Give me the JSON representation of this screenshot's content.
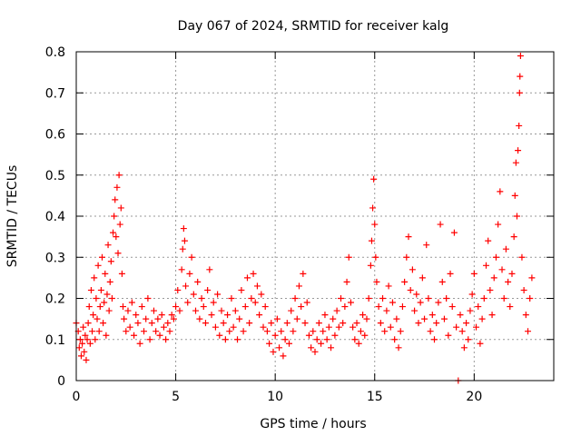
{
  "chart_data": {
    "type": "scatter",
    "title": "Day 067 of 2024, SRMTID for receiver kalg",
    "xlabel": "GPS time / hours",
    "ylabel": "SRMTID / TECUs",
    "xlim": [
      0,
      24
    ],
    "ylim": [
      0,
      0.8
    ],
    "xticks": [
      0,
      5,
      10,
      15,
      20
    ],
    "xtick_labels": [
      "0",
      "5",
      "10",
      "15",
      "20"
    ],
    "yticks": [
      0,
      0.1,
      0.2,
      0.3,
      0.4,
      0.5,
      0.6,
      0.7,
      0.8
    ],
    "ytick_labels": [
      "0",
      "0.1",
      "0.2",
      "0.3",
      "0.4",
      "0.5",
      "0.6",
      "0.7",
      "0.8"
    ],
    "grid": true,
    "marker": "+",
    "color": "#ff0000",
    "series": [
      {
        "name": "SRMTID",
        "points": [
          [
            0.0,
            0.14
          ],
          [
            0.1,
            0.12
          ],
          [
            0.15,
            0.08
          ],
          [
            0.2,
            0.1
          ],
          [
            0.25,
            0.06
          ],
          [
            0.3,
            0.09
          ],
          [
            0.35,
            0.13
          ],
          [
            0.4,
            0.07
          ],
          [
            0.45,
            0.11
          ],
          [
            0.5,
            0.05
          ],
          [
            0.55,
            0.1
          ],
          [
            0.6,
            0.14
          ],
          [
            0.65,
            0.18
          ],
          [
            0.7,
            0.09
          ],
          [
            0.75,
            0.22
          ],
          [
            0.8,
            0.12
          ],
          [
            0.85,
            0.16
          ],
          [
            0.9,
            0.25
          ],
          [
            0.95,
            0.1
          ],
          [
            1.0,
            0.2
          ],
          [
            1.05,
            0.15
          ],
          [
            1.1,
            0.28
          ],
          [
            1.15,
            0.12
          ],
          [
            1.2,
            0.18
          ],
          [
            1.25,
            0.22
          ],
          [
            1.3,
            0.3
          ],
          [
            1.35,
            0.14
          ],
          [
            1.4,
            0.19
          ],
          [
            1.45,
            0.26
          ],
          [
            1.5,
            0.11
          ],
          [
            1.55,
            0.21
          ],
          [
            1.6,
            0.33
          ],
          [
            1.65,
            0.17
          ],
          [
            1.7,
            0.24
          ],
          [
            1.75,
            0.29
          ],
          [
            1.8,
            0.2
          ],
          [
            1.85,
            0.36
          ],
          [
            1.9,
            0.4
          ],
          [
            1.95,
            0.44
          ],
          [
            2.0,
            0.35
          ],
          [
            2.05,
            0.47
          ],
          [
            2.1,
            0.31
          ],
          [
            2.15,
            0.5
          ],
          [
            2.2,
            0.38
          ],
          [
            2.25,
            0.42
          ],
          [
            2.3,
            0.26
          ],
          [
            2.35,
            0.18
          ],
          [
            2.4,
            0.15
          ],
          [
            2.5,
            0.12
          ],
          [
            2.6,
            0.17
          ],
          [
            2.7,
            0.13
          ],
          [
            2.8,
            0.19
          ],
          [
            2.9,
            0.11
          ],
          [
            3.0,
            0.16
          ],
          [
            3.1,
            0.14
          ],
          [
            3.2,
            0.09
          ],
          [
            3.3,
            0.18
          ],
          [
            3.4,
            0.12
          ],
          [
            3.5,
            0.15
          ],
          [
            3.6,
            0.2
          ],
          [
            3.7,
            0.1
          ],
          [
            3.8,
            0.14
          ],
          [
            3.9,
            0.17
          ],
          [
            4.0,
            0.12
          ],
          [
            4.1,
            0.15
          ],
          [
            4.2,
            0.11
          ],
          [
            4.3,
            0.16
          ],
          [
            4.4,
            0.13
          ],
          [
            4.5,
            0.1
          ],
          [
            4.6,
            0.14
          ],
          [
            4.7,
            0.12
          ],
          [
            4.8,
            0.16
          ],
          [
            4.9,
            0.15
          ],
          [
            5.0,
            0.18
          ],
          [
            5.1,
            0.22
          ],
          [
            5.2,
            0.17
          ],
          [
            5.3,
            0.27
          ],
          [
            5.35,
            0.32
          ],
          [
            5.4,
            0.37
          ],
          [
            5.45,
            0.34
          ],
          [
            5.5,
            0.23
          ],
          [
            5.6,
            0.19
          ],
          [
            5.7,
            0.26
          ],
          [
            5.8,
            0.3
          ],
          [
            5.9,
            0.21
          ],
          [
            6.0,
            0.17
          ],
          [
            6.1,
            0.24
          ],
          [
            6.2,
            0.15
          ],
          [
            6.3,
            0.2
          ],
          [
            6.4,
            0.18
          ],
          [
            6.5,
            0.14
          ],
          [
            6.6,
            0.22
          ],
          [
            6.7,
            0.27
          ],
          [
            6.8,
            0.16
          ],
          [
            6.9,
            0.19
          ],
          [
            7.0,
            0.13
          ],
          [
            7.1,
            0.21
          ],
          [
            7.2,
            0.11
          ],
          [
            7.3,
            0.17
          ],
          [
            7.4,
            0.14
          ],
          [
            7.5,
            0.1
          ],
          [
            7.6,
            0.16
          ],
          [
            7.7,
            0.12
          ],
          [
            7.8,
            0.2
          ],
          [
            7.9,
            0.13
          ],
          [
            8.0,
            0.17
          ],
          [
            8.1,
            0.1
          ],
          [
            8.2,
            0.15
          ],
          [
            8.3,
            0.22
          ],
          [
            8.4,
            0.12
          ],
          [
            8.5,
            0.18
          ],
          [
            8.6,
            0.25
          ],
          [
            8.7,
            0.14
          ],
          [
            8.8,
            0.2
          ],
          [
            8.9,
            0.26
          ],
          [
            9.0,
            0.19
          ],
          [
            9.1,
            0.23
          ],
          [
            9.2,
            0.16
          ],
          [
            9.3,
            0.21
          ],
          [
            9.4,
            0.13
          ],
          [
            9.5,
            0.18
          ],
          [
            9.6,
            0.12
          ],
          [
            9.7,
            0.09
          ],
          [
            9.8,
            0.14
          ],
          [
            9.9,
            0.07
          ],
          [
            10.0,
            0.11
          ],
          [
            10.1,
            0.15
          ],
          [
            10.2,
            0.08
          ],
          [
            10.3,
            0.12
          ],
          [
            10.4,
            0.06
          ],
          [
            10.5,
            0.1
          ],
          [
            10.6,
            0.14
          ],
          [
            10.7,
            0.09
          ],
          [
            10.8,
            0.17
          ],
          [
            10.9,
            0.12
          ],
          [
            11.0,
            0.2
          ],
          [
            11.1,
            0.15
          ],
          [
            11.2,
            0.23
          ],
          [
            11.3,
            0.18
          ],
          [
            11.4,
            0.26
          ],
          [
            11.5,
            0.14
          ],
          [
            11.6,
            0.19
          ],
          [
            11.7,
            0.11
          ],
          [
            11.8,
            0.08
          ],
          [
            11.9,
            0.12
          ],
          [
            12.0,
            0.07
          ],
          [
            12.1,
            0.1
          ],
          [
            12.2,
            0.14
          ],
          [
            12.3,
            0.09
          ],
          [
            12.4,
            0.12
          ],
          [
            12.5,
            0.16
          ],
          [
            12.6,
            0.1
          ],
          [
            12.7,
            0.13
          ],
          [
            12.8,
            0.08
          ],
          [
            12.9,
            0.15
          ],
          [
            13.0,
            0.11
          ],
          [
            13.1,
            0.17
          ],
          [
            13.2,
            0.13
          ],
          [
            13.3,
            0.2
          ],
          [
            13.4,
            0.14
          ],
          [
            13.5,
            0.18
          ],
          [
            13.6,
            0.24
          ],
          [
            13.7,
            0.3
          ],
          [
            13.8,
            0.19
          ],
          [
            13.9,
            0.13
          ],
          [
            14.0,
            0.1
          ],
          [
            14.1,
            0.14
          ],
          [
            14.2,
            0.09
          ],
          [
            14.3,
            0.12
          ],
          [
            14.4,
            0.16
          ],
          [
            14.5,
            0.11
          ],
          [
            14.6,
            0.15
          ],
          [
            14.7,
            0.2
          ],
          [
            14.8,
            0.28
          ],
          [
            14.85,
            0.34
          ],
          [
            14.9,
            0.42
          ],
          [
            14.95,
            0.49
          ],
          [
            15.0,
            0.38
          ],
          [
            15.05,
            0.3
          ],
          [
            15.1,
            0.24
          ],
          [
            15.2,
            0.18
          ],
          [
            15.3,
            0.14
          ],
          [
            15.4,
            0.2
          ],
          [
            15.5,
            0.12
          ],
          [
            15.6,
            0.17
          ],
          [
            15.7,
            0.23
          ],
          [
            15.8,
            0.13
          ],
          [
            15.9,
            0.19
          ],
          [
            16.0,
            0.1
          ],
          [
            16.1,
            0.15
          ],
          [
            16.2,
            0.08
          ],
          [
            16.3,
            0.12
          ],
          [
            16.4,
            0.18
          ],
          [
            16.5,
            0.24
          ],
          [
            16.6,
            0.3
          ],
          [
            16.7,
            0.35
          ],
          [
            16.8,
            0.22
          ],
          [
            16.9,
            0.27
          ],
          [
            17.0,
            0.17
          ],
          [
            17.1,
            0.21
          ],
          [
            17.2,
            0.14
          ],
          [
            17.3,
            0.19
          ],
          [
            17.4,
            0.25
          ],
          [
            17.5,
            0.15
          ],
          [
            17.6,
            0.33
          ],
          [
            17.7,
            0.2
          ],
          [
            17.8,
            0.12
          ],
          [
            17.9,
            0.16
          ],
          [
            18.0,
            0.1
          ],
          [
            18.1,
            0.14
          ],
          [
            18.2,
            0.19
          ],
          [
            18.3,
            0.38
          ],
          [
            18.4,
            0.24
          ],
          [
            18.5,
            0.15
          ],
          [
            18.6,
            0.2
          ],
          [
            18.7,
            0.11
          ],
          [
            18.8,
            0.26
          ],
          [
            18.9,
            0.18
          ],
          [
            19.0,
            0.36
          ],
          [
            19.1,
            0.13
          ],
          [
            19.2,
            0.0
          ],
          [
            19.3,
            0.16
          ],
          [
            19.4,
            0.12
          ],
          [
            19.5,
            0.08
          ],
          [
            19.6,
            0.14
          ],
          [
            19.7,
            0.1
          ],
          [
            19.8,
            0.17
          ],
          [
            19.9,
            0.21
          ],
          [
            20.0,
            0.26
          ],
          [
            20.1,
            0.13
          ],
          [
            20.2,
            0.18
          ],
          [
            20.3,
            0.09
          ],
          [
            20.4,
            0.15
          ],
          [
            20.5,
            0.2
          ],
          [
            20.6,
            0.28
          ],
          [
            20.7,
            0.34
          ],
          [
            20.8,
            0.22
          ],
          [
            20.9,
            0.16
          ],
          [
            21.0,
            0.25
          ],
          [
            21.1,
            0.3
          ],
          [
            21.2,
            0.38
          ],
          [
            21.3,
            0.46
          ],
          [
            21.4,
            0.27
          ],
          [
            21.5,
            0.2
          ],
          [
            21.6,
            0.32
          ],
          [
            21.7,
            0.24
          ],
          [
            21.8,
            0.18
          ],
          [
            21.9,
            0.26
          ],
          [
            22.0,
            0.35
          ],
          [
            22.05,
            0.45
          ],
          [
            22.1,
            0.53
          ],
          [
            22.15,
            0.4
          ],
          [
            22.2,
            0.56
          ],
          [
            22.25,
            0.62
          ],
          [
            22.28,
            0.7
          ],
          [
            22.3,
            0.74
          ],
          [
            22.33,
            0.79
          ],
          [
            22.4,
            0.3
          ],
          [
            22.5,
            0.22
          ],
          [
            22.6,
            0.16
          ],
          [
            22.7,
            0.12
          ],
          [
            22.8,
            0.2
          ],
          [
            22.9,
            0.25
          ]
        ]
      }
    ]
  }
}
